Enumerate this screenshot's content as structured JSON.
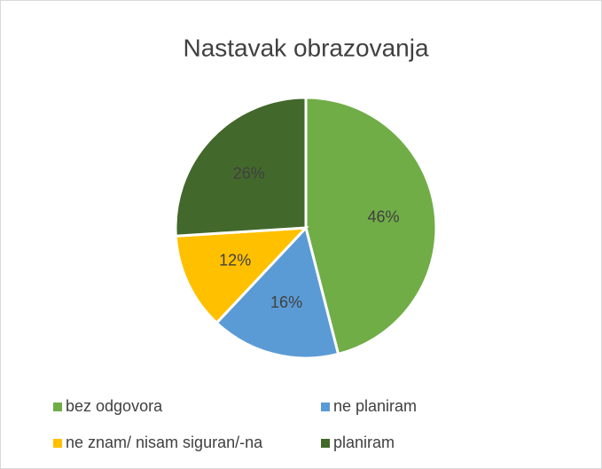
{
  "chart_data": {
    "type": "pie",
    "title": "Nastavak obrazovanja",
    "categories": [
      "bez odgovora",
      "ne planiram",
      "ne znam/ nisam siguran/-na",
      "planiram"
    ],
    "values": [
      46,
      16,
      12,
      26
    ],
    "value_labels": [
      "46%",
      "16%",
      "12%",
      "26%"
    ],
    "colors": [
      "#70ad47",
      "#5b9bd5",
      "#ffc000",
      "#43682b"
    ],
    "legend": "bottom"
  }
}
